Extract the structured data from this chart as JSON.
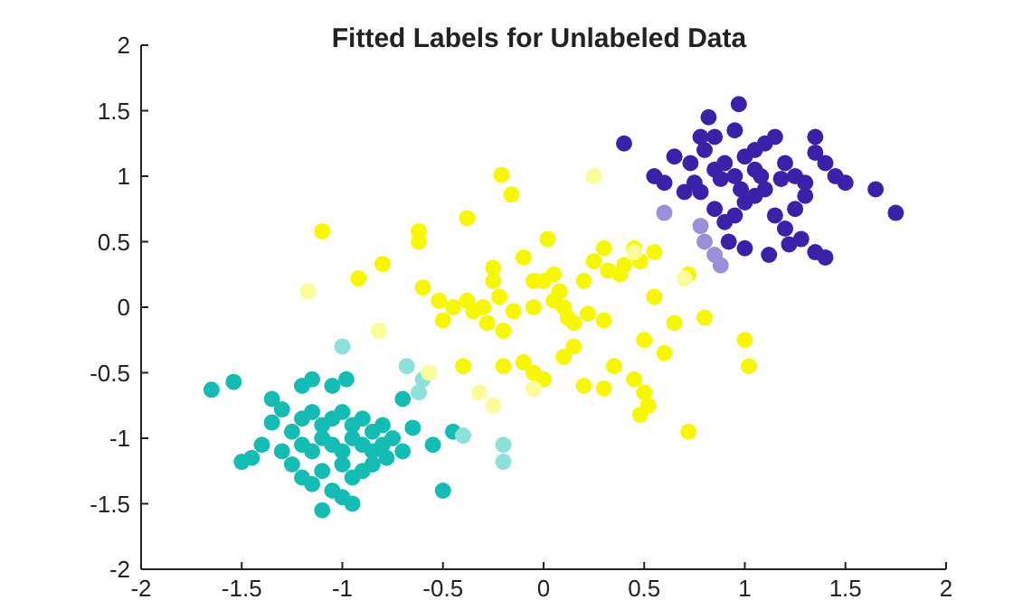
{
  "chart_data": {
    "type": "scatter",
    "title": "Fitted Labels for Unlabeled Data",
    "xlim": [
      -2,
      2
    ],
    "ylim": [
      -2,
      2
    ],
    "xticks": [
      -2,
      -1.5,
      -1,
      -0.5,
      0,
      0.5,
      1,
      1.5,
      2
    ],
    "yticks": [
      -2,
      -1.5,
      -1,
      -0.5,
      0,
      0.5,
      1,
      1.5,
      2
    ],
    "grid": false,
    "legend": false,
    "marker": "circle",
    "series": [
      {
        "color": "#14bcb4",
        "x": [
          -1.65,
          -1.54,
          -1.35,
          -1.3,
          -1.25,
          -1.2,
          -1.15,
          -1.1,
          -1.05,
          -1,
          -0.95,
          -0.9,
          -0.85,
          -0.8,
          -1.2,
          -1.15,
          -1.1,
          -1.05,
          -1,
          -0.95,
          -0.9,
          -0.85,
          -0.8,
          -0.75,
          -1.4,
          -1.45,
          -1.5,
          -1.3,
          -1.25,
          -1.2,
          -1.1,
          -1,
          -0.95,
          -0.9,
          -0.85,
          -0.78,
          -0.7,
          -1.05,
          -1,
          -0.95,
          -1.15,
          -1.1,
          -0.5,
          -0.55,
          -0.45,
          -1.15,
          -1.05,
          -0.98,
          -1.2,
          -0.7,
          -0.65,
          -1.35
        ],
        "values": [
          -0.63,
          -0.57,
          -0.88,
          -0.78,
          -0.95,
          -0.85,
          -0.8,
          -0.9,
          -0.85,
          -0.8,
          -0.9,
          -0.85,
          -0.95,
          -0.9,
          -1.05,
          -1.1,
          -1,
          -1.05,
          -1.1,
          -1,
          -1.05,
          -1.1,
          -1.05,
          -1,
          -1.05,
          -1.15,
          -1.18,
          -1.1,
          -1.2,
          -1.3,
          -1.25,
          -1.2,
          -1.3,
          -1.25,
          -1.2,
          -1.15,
          -1.1,
          -1.4,
          -1.45,
          -1.5,
          -1.35,
          -1.55,
          -1.4,
          -1.05,
          -0.95,
          -0.55,
          -0.6,
          -0.55,
          -0.6,
          -0.7,
          -0.92,
          -0.7
        ]
      },
      {
        "color": "#8ee0da",
        "x": [
          -1,
          -0.68,
          -0.6,
          -0.4,
          -0.2,
          -0.2,
          -0.62
        ],
        "values": [
          -0.3,
          -0.45,
          -0.55,
          -0.98,
          -1.05,
          -1.18,
          -0.65
        ]
      },
      {
        "color": "#f7f700",
        "x": [
          -1.1,
          -0.92,
          -0.8,
          -0.62,
          -0.62,
          -0.6,
          -0.52,
          -0.45,
          -0.38,
          -0.35,
          -0.38,
          -0.21,
          -0.16,
          -0.1,
          0.02,
          -0.25,
          -0.25,
          -0.22,
          -0.15,
          -0.05,
          0,
          0.05,
          0.08,
          0.1,
          0.12,
          0.15,
          0.2,
          0.22,
          0.25,
          0.3,
          0.32,
          0.38,
          0.4,
          0.45,
          0.48,
          0.5,
          0.55,
          0.6,
          0.65,
          0.72,
          0.8,
          1,
          1.02,
          0.72,
          0.55,
          -0.28,
          -0.2,
          -0.1,
          -0.05,
          0,
          0.1,
          0.2,
          0.3,
          0.35,
          0.45,
          0.5,
          0.48,
          0.52,
          -0.4,
          -0.2,
          0.15,
          -0.05,
          0.05,
          -0.3,
          0.3,
          -0.5
        ],
        "values": [
          0.58,
          0.22,
          0.33,
          0.5,
          0.58,
          0.15,
          0.05,
          0,
          0.05,
          -0.03,
          0.68,
          1.01,
          0.86,
          0.38,
          0.52,
          0.3,
          0.2,
          0.08,
          -0.03,
          0,
          0.2,
          0.25,
          0.12,
          0,
          -0.08,
          -0.12,
          0.2,
          -0.05,
          0.35,
          -0.1,
          0.28,
          0.25,
          0.32,
          0.45,
          0.35,
          -0.25,
          0.08,
          -0.35,
          -0.12,
          0.25,
          -0.08,
          -0.25,
          -0.45,
          -0.95,
          0.42,
          -0.12,
          -0.18,
          -0.42,
          -0.5,
          -0.55,
          -0.38,
          -0.6,
          -0.62,
          -0.45,
          -0.55,
          -0.65,
          -0.82,
          -0.75,
          -0.45,
          -0.45,
          -0.3,
          0.2,
          0.05,
          0,
          0.45,
          -0.1
        ]
      },
      {
        "color": "#fbfb9a",
        "x": [
          -1.17,
          -0.82,
          -0.57,
          -0.32,
          -0.25,
          0.25,
          0.7,
          0.45,
          -0.05
        ],
        "values": [
          0.12,
          -0.18,
          -0.5,
          -0.65,
          -0.75,
          1,
          0.22,
          0.42,
          -0.62
        ]
      },
      {
        "color": "#3b20a8",
        "x": [
          0.4,
          0.82,
          0.97,
          0.65,
          0.55,
          0.6,
          0.73,
          0.8,
          0.85,
          0.9,
          0.95,
          1,
          1.05,
          1.1,
          1.15,
          1.2,
          1.25,
          1.3,
          1.35,
          1.4,
          1.45,
          1.5,
          1.65,
          1.75,
          0.78,
          0.85,
          0.9,
          0.95,
          1,
          1.05,
          1.1,
          1.15,
          1.2,
          1.25,
          1.3,
          1.35,
          1.4,
          1.28,
          1.22,
          1,
          1.12,
          0.92,
          0.75,
          0.85,
          0.95,
          1.05,
          0.98,
          1.08,
          1.18,
          0.88,
          0.78,
          1.35,
          0.7
        ],
        "values": [
          1.25,
          1.45,
          1.55,
          1.15,
          1,
          0.95,
          1.1,
          1.2,
          1.05,
          1.1,
          1,
          1.15,
          1.2,
          1.25,
          1.3,
          1.1,
          1,
          0.95,
          1.3,
          1.1,
          1,
          0.95,
          0.9,
          0.72,
          0.88,
          0.75,
          0.65,
          0.7,
          0.8,
          0.85,
          0.9,
          0.7,
          0.6,
          0.75,
          0.85,
          0.42,
          0.38,
          0.52,
          0.48,
          0.45,
          0.4,
          0.5,
          0.95,
          1.3,
          1.35,
          1.05,
          0.9,
          1,
          0.98,
          0.98,
          1.3,
          1.18,
          0.88
        ]
      },
      {
        "color": "#9a90d8",
        "x": [
          0.6,
          0.78,
          0.8,
          0.85,
          0.88
        ],
        "values": [
          0.72,
          0.62,
          0.5,
          0.4,
          0.32
        ]
      }
    ]
  }
}
